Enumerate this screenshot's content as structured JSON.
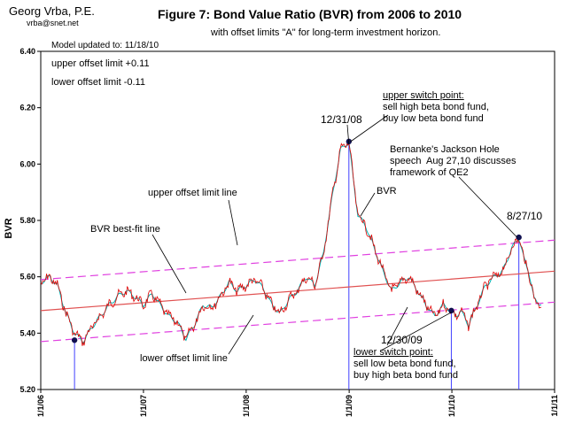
{
  "header": {
    "author": "Georg Vrba, P.E.",
    "email": "vrba@snet.net",
    "model_updated": "Model updated to:    11/18/10",
    "upper_limit": "upper offset limit +0.11",
    "lower_limit": "lower offset limit  -0.11"
  },
  "colors": {
    "bvr_line": "#e00000",
    "smooth_line": "#00b0b0",
    "bestfit_line": "#e05050",
    "offset_lines": "#e040e0",
    "switch_lines": "#4040ff",
    "points": "#101050"
  },
  "chart_data": {
    "type": "line",
    "title": "Figure 7: Bond Value Ratio (BVR) from 2006 to 2010",
    "subtitle": "with offset limits \"A\" for long-term investment horizon.",
    "ylabel": "BVR",
    "xlabel": "",
    "ylim": [
      5.2,
      6.4
    ],
    "xlim": [
      "2006-01-01",
      "2011-01-01"
    ],
    "y_ticks": [
      "5.20",
      "5.40",
      "5.60",
      "5.80",
      "6.00",
      "6.20",
      "6.40"
    ],
    "x_ticks": [
      "1/1/06",
      "1/1/07",
      "1/1/08",
      "1/1/09",
      "1/1/10",
      "1/1/11"
    ],
    "grid": false,
    "legend": "none",
    "series": [
      {
        "name": "BVR",
        "x": [
          "2006-01-01",
          "2006-02-01",
          "2006-03-01",
          "2006-04-01",
          "2006-05-01",
          "2006-06-01",
          "2006-07-01",
          "2006-08-01",
          "2006-09-01",
          "2006-10-01",
          "2006-11-01",
          "2006-12-01",
          "2007-01-01",
          "2007-02-01",
          "2007-03-01",
          "2007-04-01",
          "2007-05-01",
          "2007-06-01",
          "2007-07-01",
          "2007-08-01",
          "2007-09-01",
          "2007-10-01",
          "2007-11-01",
          "2007-12-01",
          "2008-01-01",
          "2008-02-01",
          "2008-03-01",
          "2008-04-01",
          "2008-05-01",
          "2008-06-01",
          "2008-07-01",
          "2008-08-01",
          "2008-09-01",
          "2008-10-01",
          "2008-11-01",
          "2008-12-01",
          "2008-12-31",
          "2009-01-15",
          "2009-02-01",
          "2009-03-01",
          "2009-04-01",
          "2009-05-01",
          "2009-06-01",
          "2009-07-01",
          "2009-08-01",
          "2009-09-01",
          "2009-10-01",
          "2009-11-01",
          "2009-12-01",
          "2009-12-30",
          "2010-01-15",
          "2010-02-01",
          "2010-03-01",
          "2010-04-01",
          "2010-05-01",
          "2010-06-01",
          "2010-07-01",
          "2010-08-01",
          "2010-08-27",
          "2010-09-15",
          "2010-10-01",
          "2010-10-20",
          "2010-11-18"
        ],
        "y": [
          5.58,
          5.6,
          5.57,
          5.47,
          5.4,
          5.37,
          5.42,
          5.46,
          5.5,
          5.53,
          5.55,
          5.53,
          5.5,
          5.54,
          5.5,
          5.46,
          5.44,
          5.38,
          5.43,
          5.5,
          5.49,
          5.53,
          5.58,
          5.55,
          5.57,
          5.59,
          5.56,
          5.5,
          5.47,
          5.52,
          5.55,
          5.6,
          5.57,
          5.68,
          5.88,
          6.05,
          6.08,
          5.95,
          5.82,
          5.78,
          5.7,
          5.62,
          5.55,
          5.58,
          5.6,
          5.55,
          5.5,
          5.46,
          5.5,
          5.48,
          5.46,
          5.48,
          5.43,
          5.5,
          5.57,
          5.6,
          5.62,
          5.7,
          5.74,
          5.66,
          5.62,
          5.52,
          5.5
        ]
      }
    ],
    "lines": [
      {
        "name": "BVR best-fit line",
        "y_start": 5.48,
        "y_end": 5.62
      },
      {
        "name": "upper offset limit line",
        "y_start": 5.59,
        "y_end": 5.73
      },
      {
        "name": "lower offset limit line",
        "y_start": 5.37,
        "y_end": 5.51
      }
    ],
    "switch_points": [
      {
        "x": "2006-05-01",
        "y": 5.375
      },
      {
        "x": "2008-12-31",
        "y": 6.08
      },
      {
        "x": "2009-12-30",
        "y": 5.48
      },
      {
        "x": "2010-08-27",
        "y": 5.74
      }
    ],
    "annotations": {
      "upper_switch_title": "upper switch point:",
      "upper_switch_text": "sell high beta bond fund,\nbuy low beta bond fund",
      "date_1": "12/31/08",
      "bernanke": "Bernanke's Jackson Hole\nspeech  Aug 27,10 discusses\nframework of QE2",
      "date_2": "8/27/10",
      "bvr": "BVR",
      "upper_offset": "upper offset limit line",
      "bestfit": "BVR best-fit line",
      "lower_offset": "lower offset limit line",
      "date_3": "12/30/09",
      "lower_switch_title": "lower switch point:",
      "lower_switch_text": "sell low beta bond fund,\nbuy high beta bond fund"
    }
  }
}
